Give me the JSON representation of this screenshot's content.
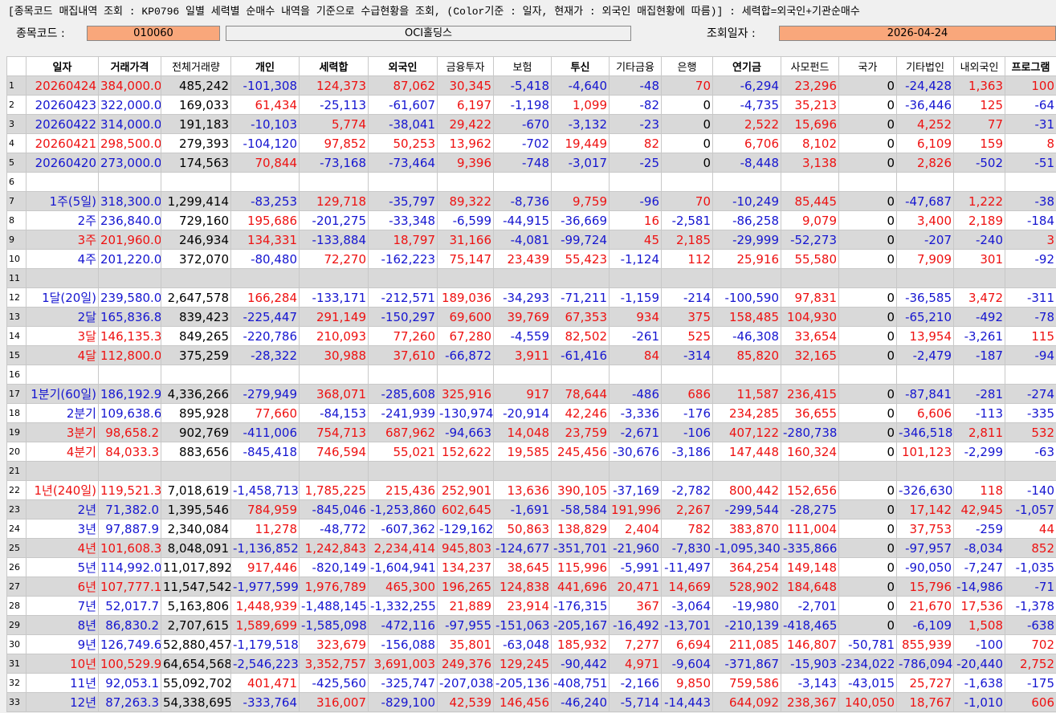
{
  "header": {
    "title": "[종목코드 매집내역 조회 : KP0796 일별 세력별 순매수 내역을 기준으로 수급현황을 조회, (Color기준 : 일자, 현재가 : 외국인 매집현황에 따름)] : 세력합=외국인+기관순매수",
    "code_label": "종목코드 :",
    "code": "010060",
    "name": "OCI홀딩스",
    "date_label": "조회일자 :",
    "date": "2026-04-24"
  },
  "table": {
    "columns": [
      "일자",
      "거래가격",
      "전체거래량",
      "개인",
      "세력합",
      "외국인",
      "금융투자",
      "보험",
      "투신",
      "기타금융",
      "은행",
      "연기금",
      "사모펀드",
      "국가",
      "기타법인",
      "내외국인",
      "프로그램"
    ],
    "rows": [
      [
        "1",
        "20260424",
        "384,000.0",
        "485,242",
        "-101,308",
        "124,373",
        "87,062",
        "30,345",
        "-5,418",
        "-4,640",
        "-48",
        "70",
        "-6,294",
        "23,296",
        "0",
        "-24,428",
        "1,363",
        "100"
      ],
      [
        "2",
        "20260423",
        "322,000.0",
        "169,033",
        "61,434",
        "-25,113",
        "-61,607",
        "6,197",
        "-1,198",
        "1,099",
        "-82",
        "0",
        "-4,735",
        "35,213",
        "0",
        "-36,446",
        "125",
        "-64"
      ],
      [
        "3",
        "20260422",
        "314,000.0",
        "191,183",
        "-10,103",
        "5,774",
        "-38,041",
        "29,422",
        "-670",
        "-3,132",
        "-23",
        "0",
        "2,522",
        "15,696",
        "0",
        "4,252",
        "77",
        "-31"
      ],
      [
        "4",
        "20260421",
        "298,500.0",
        "279,393",
        "-104,120",
        "97,852",
        "50,253",
        "13,962",
        "-702",
        "19,449",
        "82",
        "0",
        "6,706",
        "8,102",
        "0",
        "6,109",
        "159",
        "8"
      ],
      [
        "5",
        "20260420",
        "273,000.0",
        "174,563",
        "70,844",
        "-73,168",
        "-73,464",
        "9,396",
        "-748",
        "-3,017",
        "-25",
        "0",
        "-8,448",
        "3,138",
        "0",
        "2,826",
        "-502",
        "-51"
      ],
      [
        "6"
      ],
      [
        "7",
        "1주(5일)",
        "318,300.0",
        "1,299,414",
        "-83,253",
        "129,718",
        "-35,797",
        "89,322",
        "-8,736",
        "9,759",
        "-96",
        "70",
        "-10,249",
        "85,445",
        "0",
        "-47,687",
        "1,222",
        "-38"
      ],
      [
        "8",
        "2주",
        "236,840.0",
        "729,160",
        "195,686",
        "-201,275",
        "-33,348",
        "-6,599",
        "-44,915",
        "-36,669",
        "16",
        "-2,581",
        "-86,258",
        "9,079",
        "0",
        "3,400",
        "2,189",
        "-184"
      ],
      [
        "9",
        "3주",
        "201,960.0",
        "246,934",
        "134,331",
        "-133,884",
        "18,797",
        "31,166",
        "-4,081",
        "-99,724",
        "45",
        "2,185",
        "-29,999",
        "-52,273",
        "0",
        "-207",
        "-240",
        "3"
      ],
      [
        "10",
        "4주",
        "201,220.0",
        "372,070",
        "-80,480",
        "72,270",
        "-162,223",
        "75,147",
        "23,439",
        "55,423",
        "-1,124",
        "112",
        "25,916",
        "55,580",
        "0",
        "7,909",
        "301",
        "-92"
      ],
      [
        "11"
      ],
      [
        "12",
        "1달(20일)",
        "239,580.0",
        "2,647,578",
        "166,284",
        "-133,171",
        "-212,571",
        "189,036",
        "-34,293",
        "-71,211",
        "-1,159",
        "-214",
        "-100,590",
        "97,831",
        "0",
        "-36,585",
        "3,472",
        "-311"
      ],
      [
        "13",
        "2달",
        "165,836.8",
        "839,423",
        "-225,447",
        "291,149",
        "-150,297",
        "69,600",
        "39,769",
        "67,353",
        "934",
        "375",
        "158,485",
        "104,930",
        "0",
        "-65,210",
        "-492",
        "-78"
      ],
      [
        "14",
        "3달",
        "146,135.3",
        "849,265",
        "-220,786",
        "210,093",
        "77,260",
        "67,280",
        "-4,559",
        "82,502",
        "-261",
        "525",
        "-46,308",
        "33,654",
        "0",
        "13,954",
        "-3,261",
        "115"
      ],
      [
        "15",
        "4달",
        "112,800.0",
        "375,259",
        "-28,322",
        "30,988",
        "37,610",
        "-66,872",
        "3,911",
        "-61,416",
        "84",
        "-314",
        "85,820",
        "32,165",
        "0",
        "-2,479",
        "-187",
        "-94"
      ],
      [
        "16"
      ],
      [
        "17",
        "1분기(60일)",
        "186,192.9",
        "4,336,266",
        "-279,949",
        "368,071",
        "-285,608",
        "325,916",
        "917",
        "78,644",
        "-486",
        "686",
        "11,587",
        "236,415",
        "0",
        "-87,841",
        "-281",
        "-274"
      ],
      [
        "18",
        "2분기",
        "109,638.6",
        "895,928",
        "77,660",
        "-84,153",
        "-241,939",
        "-130,974",
        "-20,914",
        "42,246",
        "-3,336",
        "-176",
        "234,285",
        "36,655",
        "0",
        "6,606",
        "-113",
        "-335"
      ],
      [
        "19",
        "3분기",
        "98,658.2",
        "902,769",
        "-411,006",
        "754,713",
        "687,962",
        "-94,663",
        "14,048",
        "23,759",
        "-2,671",
        "-106",
        "407,122",
        "-280,738",
        "0",
        "-346,518",
        "2,811",
        "532"
      ],
      [
        "20",
        "4분기",
        "84,033.3",
        "883,656",
        "-845,418",
        "746,594",
        "55,021",
        "152,622",
        "19,585",
        "245,456",
        "-30,676",
        "-3,186",
        "147,448",
        "160,324",
        "0",
        "101,123",
        "-2,299",
        "-63"
      ],
      [
        "21"
      ],
      [
        "22",
        "1년(240일)",
        "119,521.3",
        "7,018,619",
        "-1,458,713",
        "1,785,225",
        "215,436",
        "252,901",
        "13,636",
        "390,105",
        "-37,169",
        "-2,782",
        "800,442",
        "152,656",
        "0",
        "-326,630",
        "118",
        "-140"
      ],
      [
        "23",
        "2년",
        "71,382.0",
        "1,395,546",
        "784,959",
        "-845,046",
        "-1,253,860",
        "602,645",
        "-1,691",
        "-58,584",
        "191,996",
        "2,267",
        "-299,544",
        "-28,275",
        "0",
        "17,142",
        "42,945",
        "-1,057"
      ],
      [
        "24",
        "3년",
        "97,887.9",
        "2,340,084",
        "11,278",
        "-48,772",
        "-607,362",
        "-129,162",
        "50,863",
        "138,829",
        "2,404",
        "782",
        "383,870",
        "111,004",
        "0",
        "37,753",
        "-259",
        "44"
      ],
      [
        "25",
        "4년",
        "101,608.3",
        "8,048,091",
        "-1,136,852",
        "1,242,843",
        "2,234,414",
        "945,803",
        "-124,677",
        "-351,701",
        "-21,960",
        "-7,830",
        "-1,095,340",
        "-335,866",
        "0",
        "-97,957",
        "-8,034",
        "852"
      ],
      [
        "26",
        "5년",
        "114,992.0",
        "11,017,892",
        "917,446",
        "-820,149",
        "-1,604,941",
        "134,237",
        "38,645",
        "115,996",
        "-5,991",
        "-11,497",
        "364,254",
        "149,148",
        "0",
        "-90,050",
        "-7,247",
        "-1,035"
      ],
      [
        "27",
        "6년",
        "107,777.1",
        "11,547,542",
        "-1,977,599",
        "1,976,789",
        "465,300",
        "196,265",
        "124,838",
        "441,696",
        "20,471",
        "14,669",
        "528,902",
        "184,648",
        "0",
        "15,796",
        "-14,986",
        "-71"
      ],
      [
        "28",
        "7년",
        "52,017.7",
        "5,163,806",
        "1,448,939",
        "-1,488,145",
        "-1,332,255",
        "21,889",
        "23,914",
        "-176,315",
        "367",
        "-3,064",
        "-19,980",
        "-2,701",
        "0",
        "21,670",
        "17,536",
        "-1,378"
      ],
      [
        "29",
        "8년",
        "86,830.2",
        "2,707,615",
        "1,589,699",
        "-1,585,098",
        "-472,116",
        "-97,955",
        "-151,063",
        "-205,167",
        "-16,492",
        "-13,701",
        "-210,139",
        "-418,465",
        "0",
        "-6,109",
        "1,508",
        "-638"
      ],
      [
        "30",
        "9년",
        "126,749.6",
        "52,880,457",
        "-1,179,518",
        "323,679",
        "-156,088",
        "35,801",
        "-63,048",
        "185,932",
        "7,277",
        "6,694",
        "211,085",
        "146,807",
        "-50,781",
        "855,939",
        "-100",
        "702"
      ],
      [
        "31",
        "10년",
        "100,529.9",
        "64,654,568",
        "-2,546,223",
        "3,352,757",
        "3,691,003",
        "249,376",
        "129,245",
        "-90,442",
        "4,971",
        "-9,604",
        "-371,867",
        "-15,903",
        "-234,022",
        "-786,094",
        "-20,440",
        "2,752"
      ],
      [
        "32",
        "11년",
        "92,053.1",
        "55,092,702",
        "401,471",
        "-425,560",
        "-325,747",
        "-207,038",
        "-205,136",
        "-408,751",
        "-2,166",
        "9,850",
        "759,586",
        "-3,143",
        "-43,015",
        "25,727",
        "-1,638",
        "-175"
      ],
      [
        "33",
        "12년",
        "87,263.3",
        "54,338,695",
        "-333,764",
        "316,007",
        "-829,100",
        "42,539",
        "146,456",
        "-46,240",
        "-5,714",
        "-14,443",
        "644,092",
        "238,367",
        "140,050",
        "18,767",
        "-1,010",
        "606"
      ]
    ]
  }
}
